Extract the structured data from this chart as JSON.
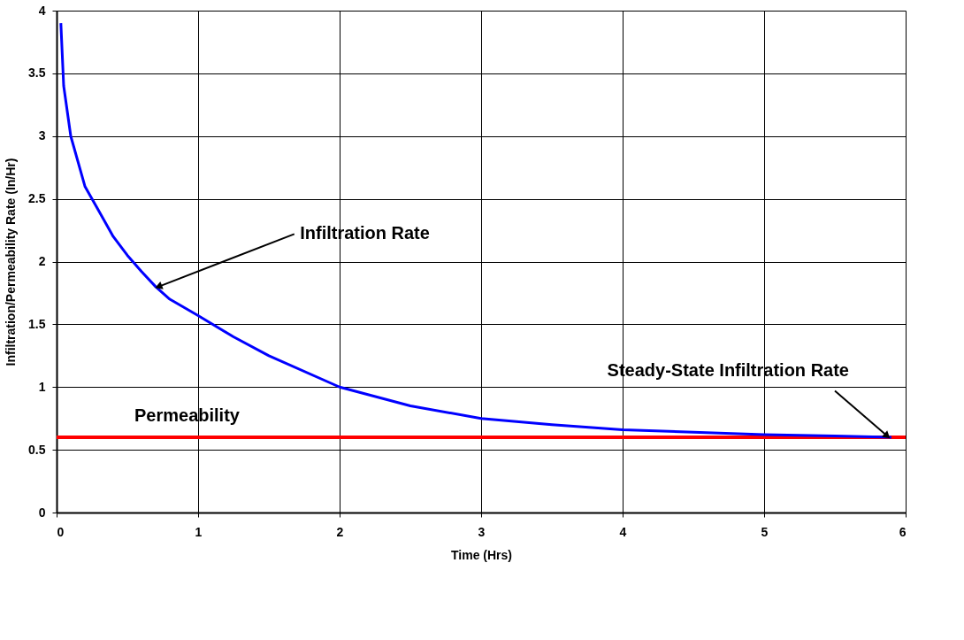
{
  "chart_data": {
    "type": "line",
    "xlabel": "Time (Hrs)",
    "ylabel": "Infiltration/Permeability Rate (In/Hr)",
    "xlim": [
      0,
      6
    ],
    "xticks": [
      0,
      1,
      2,
      3,
      4,
      5,
      6
    ],
    "ylim": [
      0,
      4
    ],
    "yticks": [
      0,
      0.5,
      1,
      1.5,
      2,
      2.5,
      3,
      3.5,
      4
    ],
    "grid": true,
    "line_style": "solid",
    "marker": "none",
    "series": [
      {
        "color": "#0000ff",
        "x": [
          0.03,
          0.05,
          0.1,
          0.2,
          0.3,
          0.4,
          0.5,
          0.6,
          0.7,
          0.8,
          1.0,
          1.25,
          1.5,
          2.0,
          2.5,
          3.0,
          3.5,
          4.0,
          4.5,
          5.0,
          5.5,
          5.9
        ],
        "values": [
          3.9,
          3.4,
          3.0,
          2.6,
          2.4,
          2.2,
          2.05,
          1.92,
          1.8,
          1.7,
          1.57,
          1.4,
          1.25,
          1.0,
          0.85,
          0.75,
          0.7,
          0.66,
          0.64,
          0.62,
          0.61,
          0.6
        ]
      }
    ],
    "ref_lines": [
      {
        "axis": "y",
        "value": 0.6,
        "label": "Permeability",
        "color": "#ff0000",
        "line_style": "solid"
      }
    ],
    "annotations": [
      {
        "text": "Infiltration Rate",
        "x": 0.72,
        "y": 1.8
      },
      {
        "text": "Steady-State Infiltration Rate",
        "x": 5.87,
        "y": 0.61
      }
    ]
  }
}
